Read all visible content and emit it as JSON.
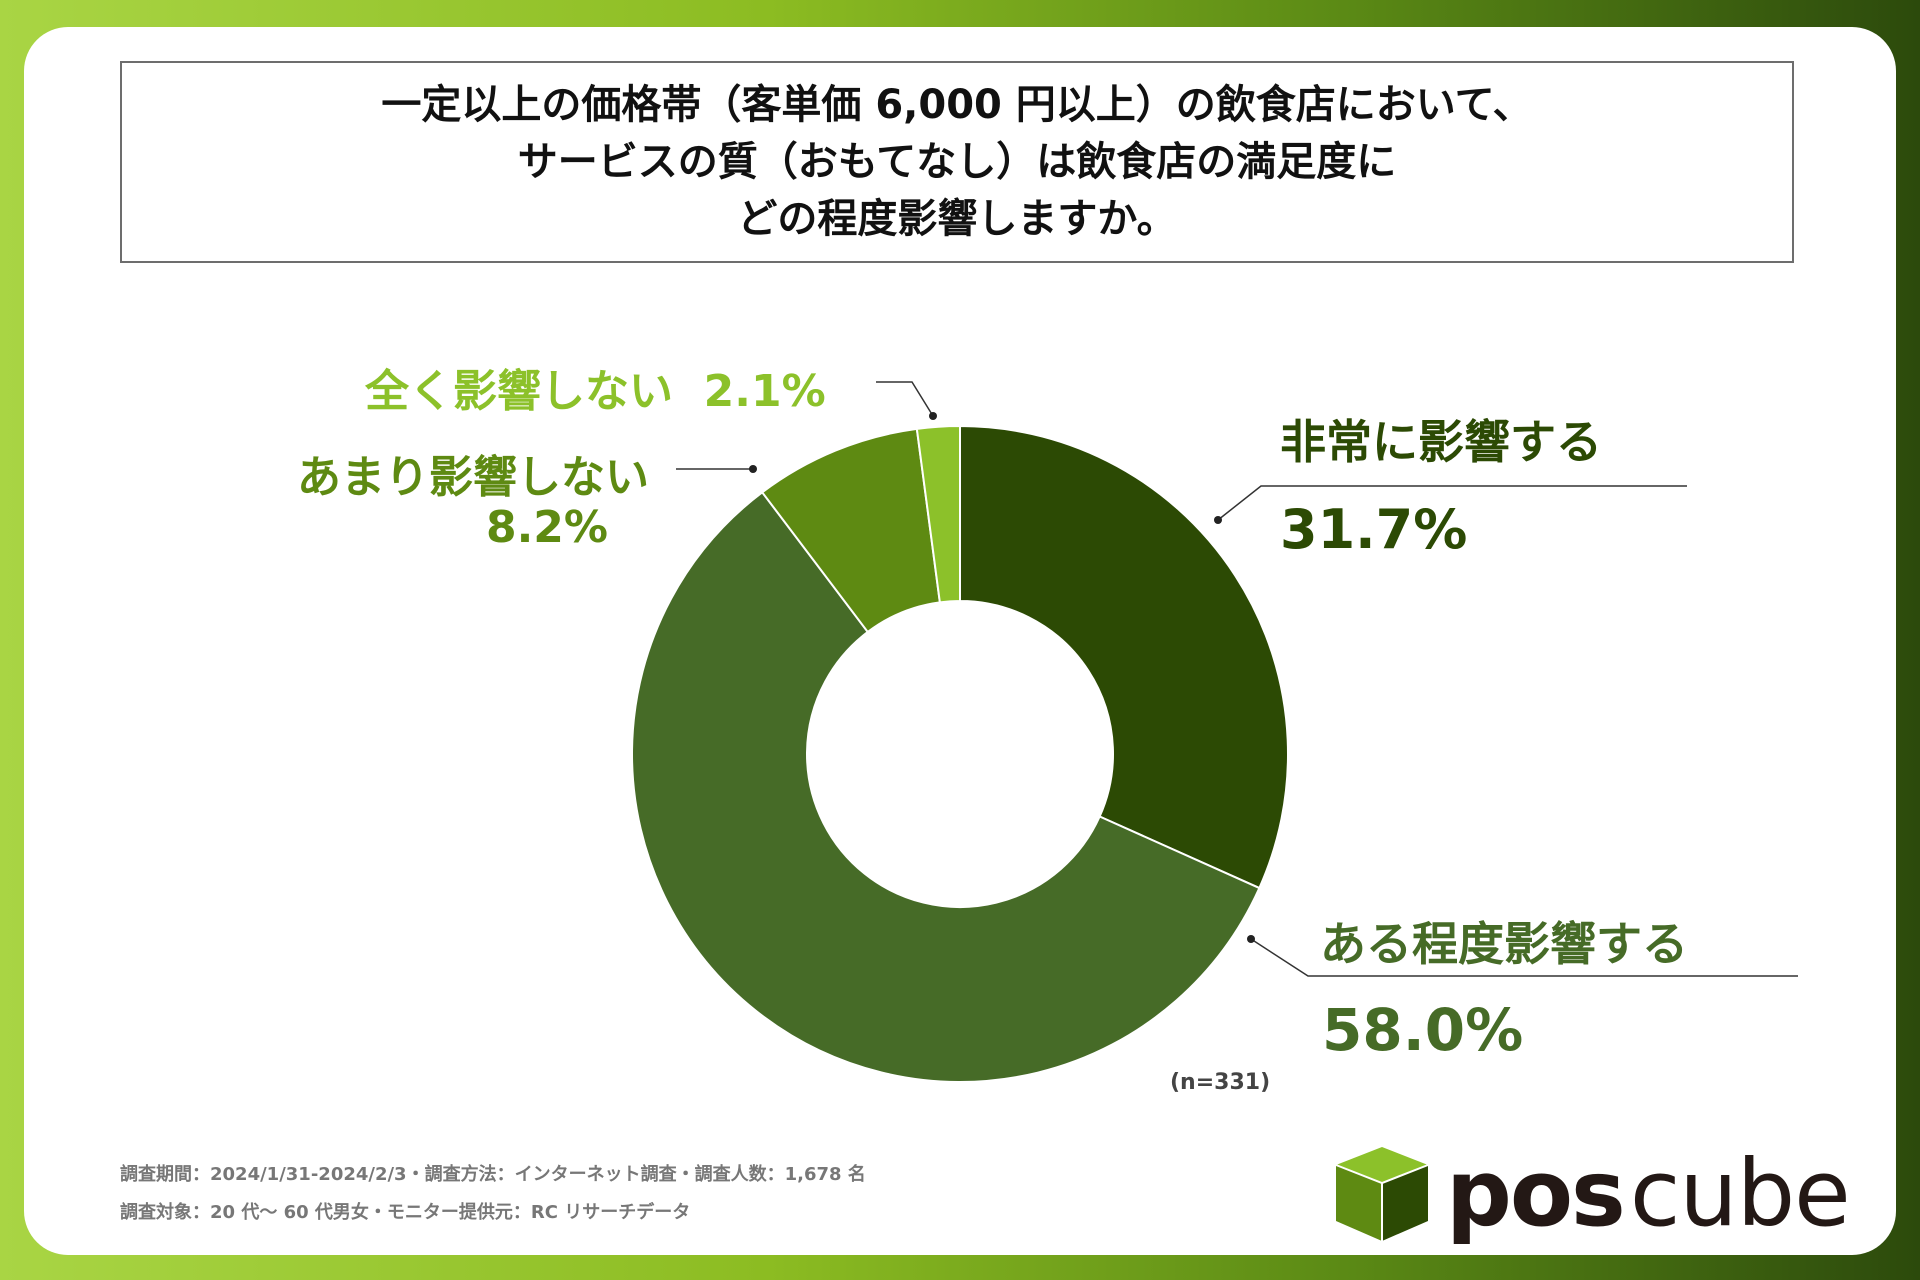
{
  "title_lines": [
    "一定以上の価格帯（客単価 6,000 円以上）の飲食店において、",
    "サービスの質（おもてなし）は飲食店の満足度に",
    "どの程度影響しますか。"
  ],
  "chart_data": {
    "type": "pie",
    "donut": true,
    "start": "top, clockwise",
    "categories": [
      "非常に影響する",
      "ある程度影響する",
      "あまり影響しない",
      "全く影響しない"
    ],
    "values": [
      31.7,
      58.0,
      8.2,
      2.1
    ],
    "value_labels": [
      "31.7%",
      "58.0%",
      "8.2%",
      "2.1%"
    ],
    "colors": [
      "#2c4a04",
      "#466b27",
      "#5e8a12",
      "#8cc12a"
    ],
    "n_label": "(n=331)"
  },
  "footer": {
    "line1": "調査期間：2024/1/31-2024/2/3・調査方法：インターネット調査・調査人数：1,678 名",
    "line2": "調査対象：20 代～ 60 代男女・モニター提供元：RC リサーチデータ"
  },
  "logo": {
    "bold": "pos",
    "light": "cube"
  }
}
